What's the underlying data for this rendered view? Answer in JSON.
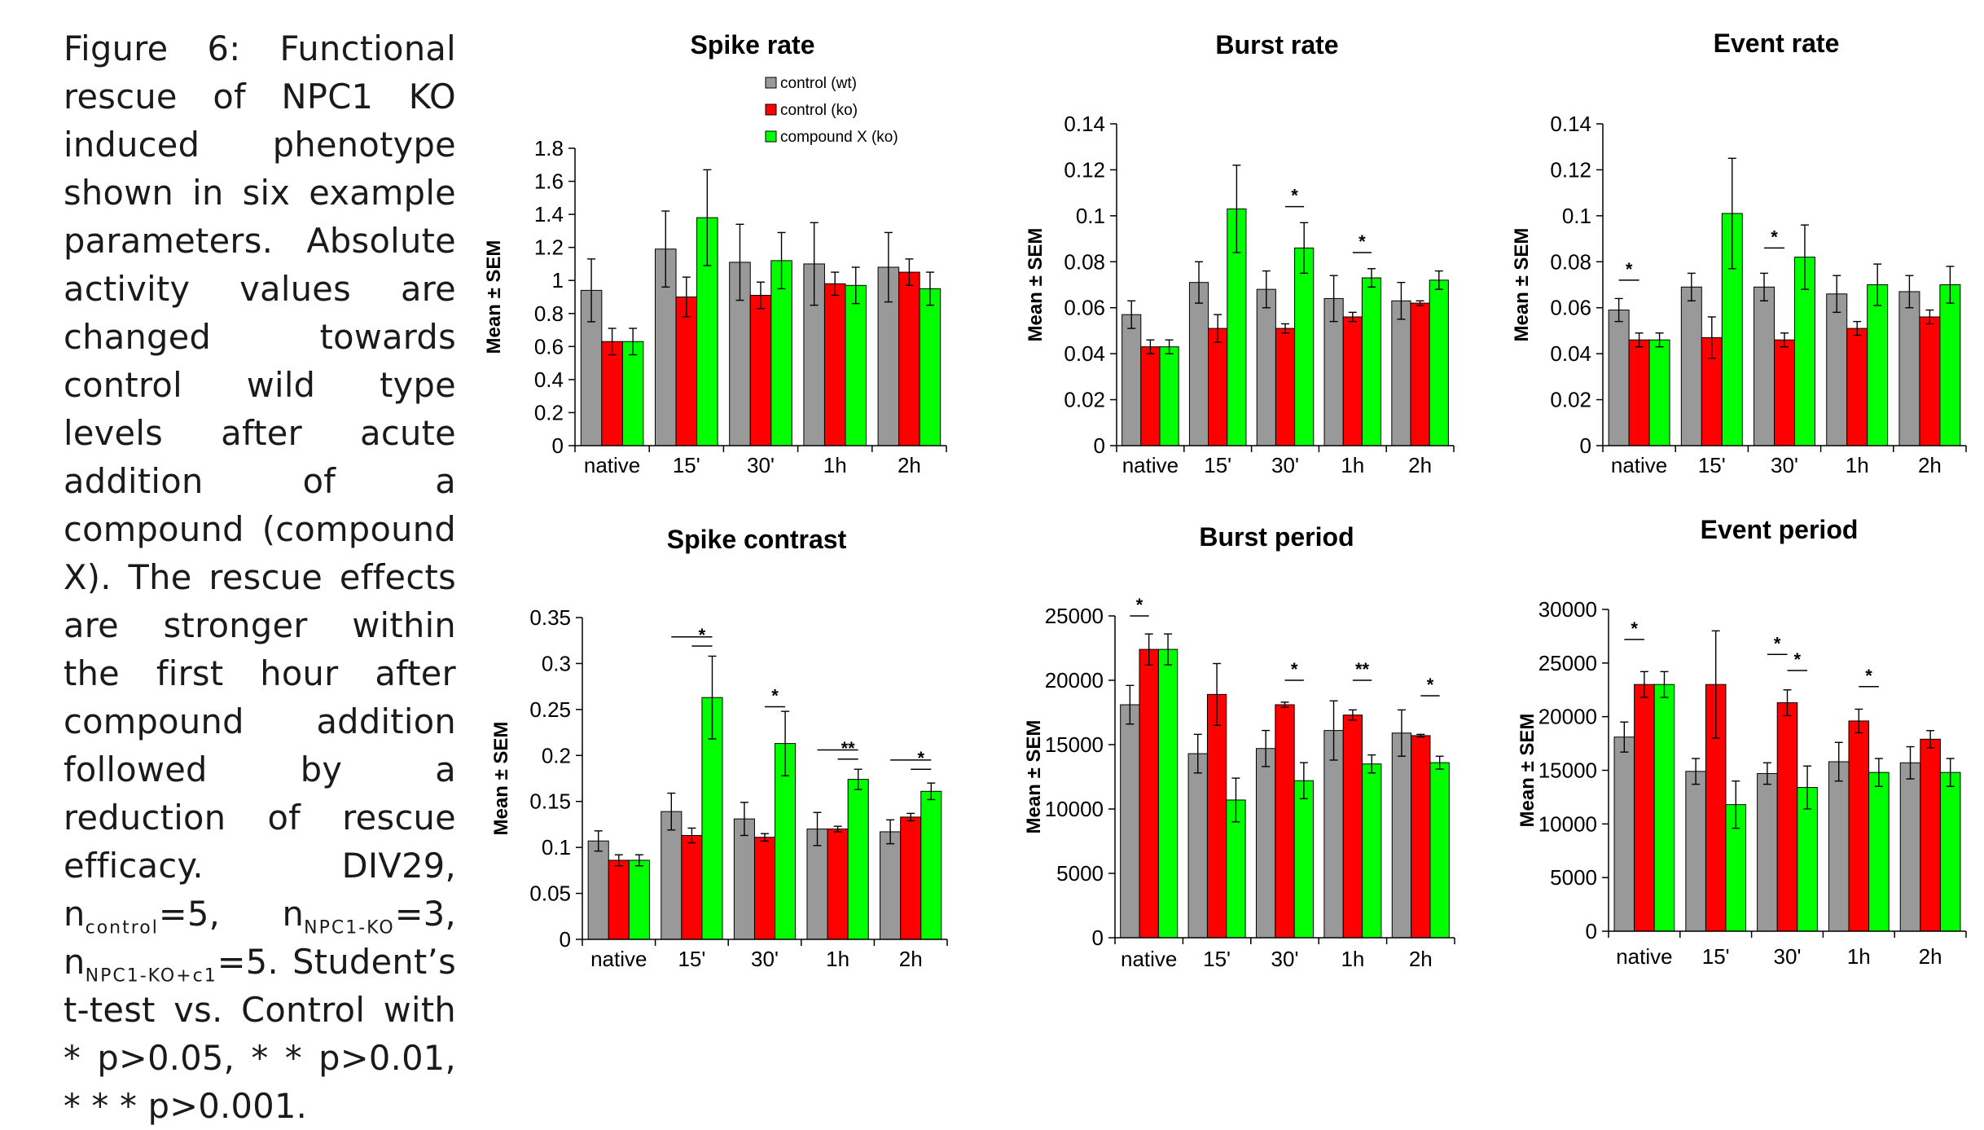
{
  "caption": {
    "main": "Figure 6: Functional rescue of NPC1 KO induced phenotype shown in six example parameters. Absolute activity values are changed towards control wild type levels after acute addition of a compound (compound X). The rescue effects are stronger within the first hour after compound addition followed by a reduction of rescue efficacy. DIV29,",
    "n1": "n",
    "n1_sub": "control",
    "n1_val": "=5,",
    "n2": "n",
    "n2_sub": "NPC1-KO",
    "n2_val": "=3,",
    "n3": "n",
    "n3_sub": "NPC1-KO+c1",
    "n3_val": "=5.",
    "tail": "Student’s t-test vs. Control with * p>0.05, * * p>0.01, * * * p>0.001."
  },
  "legend": {
    "items": [
      {
        "label": "control (wt)",
        "color": "#999999"
      },
      {
        "label": "control (ko)",
        "color": "#ff0000"
      },
      {
        "label": "compound X (ko)",
        "color": "#00ff00"
      }
    ]
  },
  "chart_data": [
    {
      "type": "bar",
      "title": "Spike rate",
      "ylabel": "Mean ± SEM",
      "categories": [
        "native",
        "15'",
        "30'",
        "1h",
        "2h"
      ],
      "ylim": [
        0,
        1.8
      ],
      "yticks": [
        "0",
        "0.2",
        "0.4",
        "0.6",
        "0.8",
        "1",
        "1.2",
        "1.4",
        "1.6",
        "1.8"
      ],
      "series": [
        {
          "name": "control (wt)",
          "color": "#999999",
          "values": [
            0.94,
            1.19,
            1.11,
            1.1,
            1.08
          ],
          "errors": [
            0.19,
            0.23,
            0.23,
            0.25,
            0.21
          ]
        },
        {
          "name": "control (ko)",
          "color": "#ff0000",
          "values": [
            0.63,
            0.9,
            0.91,
            0.98,
            1.05
          ],
          "errors": [
            0.08,
            0.12,
            0.08,
            0.07,
            0.08
          ]
        },
        {
          "name": "compound X (ko)",
          "color": "#00ff00",
          "values": [
            0.63,
            1.38,
            1.12,
            0.97,
            0.95
          ],
          "errors": [
            0.08,
            0.29,
            0.17,
            0.11,
            0.1
          ]
        }
      ],
      "annotations": []
    },
    {
      "type": "bar",
      "title": "Burst rate",
      "ylabel": "Mean ± SEM",
      "categories": [
        "native",
        "15'",
        "30'",
        "1h",
        "2h"
      ],
      "ylim": [
        0,
        0.14
      ],
      "yticks": [
        "0",
        "0.02",
        "0.04",
        "0.06",
        "0.08",
        "0.1",
        "0.12",
        "0.14"
      ],
      "series": [
        {
          "name": "control (wt)",
          "color": "#999999",
          "values": [
            0.057,
            0.071,
            0.068,
            0.064,
            0.063
          ],
          "errors": [
            0.006,
            0.009,
            0.008,
            0.01,
            0.008
          ]
        },
        {
          "name": "control (ko)",
          "color": "#ff0000",
          "values": [
            0.043,
            0.051,
            0.051,
            0.056,
            0.062
          ],
          "errors": [
            0.003,
            0.006,
            0.002,
            0.002,
            0.001
          ]
        },
        {
          "name": "compound X (ko)",
          "color": "#00ff00",
          "values": [
            0.043,
            0.103,
            0.086,
            0.073,
            0.072
          ],
          "errors": [
            0.003,
            0.019,
            0.011,
            0.004,
            0.004
          ]
        }
      ],
      "annotations": [
        {
          "label": "*",
          "from": [
            2,
            1
          ],
          "to": [
            2,
            2
          ],
          "y": 0.104
        },
        {
          "label": "*",
          "from": [
            3,
            1
          ],
          "to": [
            3,
            2
          ],
          "y": 0.084
        }
      ]
    },
    {
      "type": "bar",
      "title": "Event rate",
      "ylabel": "Mean ± SEM",
      "categories": [
        "native",
        "15'",
        "30'",
        "1h",
        "2h"
      ],
      "ylim": [
        0,
        0.14
      ],
      "yticks": [
        "0",
        "0.02",
        "0.04",
        "0.06",
        "0.08",
        "0.1",
        "0.12",
        "0.14"
      ],
      "series": [
        {
          "name": "control (wt)",
          "color": "#999999",
          "values": [
            0.059,
            0.069,
            0.069,
            0.066,
            0.067
          ],
          "errors": [
            0.005,
            0.006,
            0.006,
            0.008,
            0.007
          ]
        },
        {
          "name": "control (ko)",
          "color": "#ff0000",
          "values": [
            0.046,
            0.047,
            0.046,
            0.051,
            0.056
          ],
          "errors": [
            0.003,
            0.009,
            0.003,
            0.003,
            0.003
          ]
        },
        {
          "name": "compound X (ko)",
          "color": "#00ff00",
          "values": [
            0.046,
            0.101,
            0.082,
            0.07,
            0.07
          ],
          "errors": [
            0.003,
            0.024,
            0.014,
            0.009,
            0.008
          ]
        }
      ],
      "annotations": [
        {
          "label": "*",
          "from": [
            0,
            0
          ],
          "to": [
            0,
            1
          ],
          "y": 0.072
        },
        {
          "label": "*",
          "from": [
            2,
            0
          ],
          "to": [
            2,
            1
          ],
          "y": 0.086
        }
      ]
    },
    {
      "type": "bar",
      "title": "Spike contrast",
      "ylabel": "Mean ± SEM",
      "categories": [
        "native",
        "15'",
        "30'",
        "1h",
        "2h"
      ],
      "ylim": [
        0,
        0.35
      ],
      "yticks": [
        "0",
        "0.05",
        "0.1",
        "0.15",
        "0.2",
        "0.25",
        "0.3",
        "0.35"
      ],
      "series": [
        {
          "name": "control (wt)",
          "color": "#999999",
          "values": [
            0.107,
            0.139,
            0.131,
            0.12,
            0.117
          ],
          "errors": [
            0.011,
            0.02,
            0.018,
            0.018,
            0.013
          ]
        },
        {
          "name": "control (ko)",
          "color": "#ff0000",
          "values": [
            0.086,
            0.113,
            0.111,
            0.12,
            0.133
          ],
          "errors": [
            0.006,
            0.008,
            0.004,
            0.003,
            0.004
          ]
        },
        {
          "name": "compound X (ko)",
          "color": "#00ff00",
          "values": [
            0.086,
            0.263,
            0.213,
            0.174,
            0.161
          ],
          "errors": [
            0.006,
            0.045,
            0.035,
            0.011,
            0.009
          ]
        }
      ],
      "annotations": [
        {
          "label": "",
          "from": [
            1,
            0
          ],
          "to": [
            1,
            2
          ],
          "y": 0.329
        },
        {
          "label": "*",
          "from": [
            1,
            1
          ],
          "to": [
            1,
            2
          ],
          "y": 0.319
        },
        {
          "label": "*",
          "from": [
            2,
            1
          ],
          "to": [
            2,
            2
          ],
          "y": 0.253
        },
        {
          "label": "",
          "from": [
            3,
            0
          ],
          "to": [
            3,
            2
          ],
          "y": 0.206
        },
        {
          "label": "**",
          "from": [
            3,
            1
          ],
          "to": [
            3,
            2
          ],
          "y": 0.196
        },
        {
          "label": "",
          "from": [
            4,
            0
          ],
          "to": [
            4,
            2
          ],
          "y": 0.195
        },
        {
          "label": "*",
          "from": [
            4,
            1
          ],
          "to": [
            4,
            2
          ],
          "y": 0.185
        }
      ]
    },
    {
      "type": "bar",
      "title": "Burst period",
      "ylabel": "Mean ± SEM",
      "categories": [
        "native",
        "15'",
        "30'",
        "1h",
        "2h"
      ],
      "ylim": [
        0,
        25000
      ],
      "yticks": [
        "0",
        "5000",
        "10000",
        "15000",
        "20000",
        "25000"
      ],
      "series": [
        {
          "name": "control (wt)",
          "color": "#999999",
          "values": [
            18100,
            14300,
            14700,
            16100,
            15900
          ],
          "errors": [
            1500,
            1500,
            1400,
            2300,
            1800
          ]
        },
        {
          "name": "control (ko)",
          "color": "#ff0000",
          "values": [
            22400,
            18900,
            18100,
            17300,
            15700
          ],
          "errors": [
            1200,
            2400,
            200,
            400,
            100
          ]
        },
        {
          "name": "compound X (ko)",
          "color": "#00ff00",
          "values": [
            22400,
            10700,
            12200,
            13500,
            13600
          ],
          "errors": [
            1200,
            1700,
            1400,
            700,
            500
          ]
        }
      ],
      "annotations": [
        {
          "label": "*",
          "from": [
            0,
            0
          ],
          "to": [
            0,
            1
          ],
          "y": 25000
        },
        {
          "label": "*",
          "from": [
            2,
            1
          ],
          "to": [
            2,
            2
          ],
          "y": 20000
        },
        {
          "label": "**",
          "from": [
            3,
            1
          ],
          "to": [
            3,
            2
          ],
          "y": 20000
        },
        {
          "label": "*",
          "from": [
            4,
            1
          ],
          "to": [
            4,
            2
          ],
          "y": 18800
        }
      ]
    },
    {
      "type": "bar",
      "title": "Event period",
      "ylabel": "Mean ± SEM",
      "categories": [
        "native",
        "15'",
        "30'",
        "1h",
        "2h"
      ],
      "ylim": [
        0,
        30000
      ],
      "yticks": [
        "0",
        "5000",
        "10000",
        "15000",
        "20000",
        "25000",
        "30000"
      ],
      "series": [
        {
          "name": "control (wt)",
          "color": "#999999",
          "values": [
            18100,
            14900,
            14700,
            15800,
            15700
          ],
          "errors": [
            1400,
            1200,
            1000,
            1800,
            1500
          ]
        },
        {
          "name": "control (ko)",
          "color": "#ff0000",
          "values": [
            23000,
            23000,
            21300,
            19600,
            17900
          ],
          "errors": [
            1200,
            5000,
            1200,
            1100,
            800
          ]
        },
        {
          "name": "compound X (ko)",
          "color": "#00ff00",
          "values": [
            23000,
            11800,
            13400,
            14800,
            14800
          ],
          "errors": [
            1200,
            2200,
            2000,
            1300,
            1300
          ]
        }
      ],
      "annotations": [
        {
          "label": "*",
          "from": [
            0,
            0
          ],
          "to": [
            0,
            1
          ],
          "y": 27200
        },
        {
          "label": "*",
          "from": [
            2,
            0
          ],
          "to": [
            2,
            1
          ],
          "y": 25800
        },
        {
          "label": "*",
          "from": [
            2,
            1
          ],
          "to": [
            2,
            2
          ],
          "y": 24300
        },
        {
          "label": "*",
          "from": [
            3,
            1
          ],
          "to": [
            3,
            2
          ],
          "y": 22800
        }
      ]
    }
  ]
}
